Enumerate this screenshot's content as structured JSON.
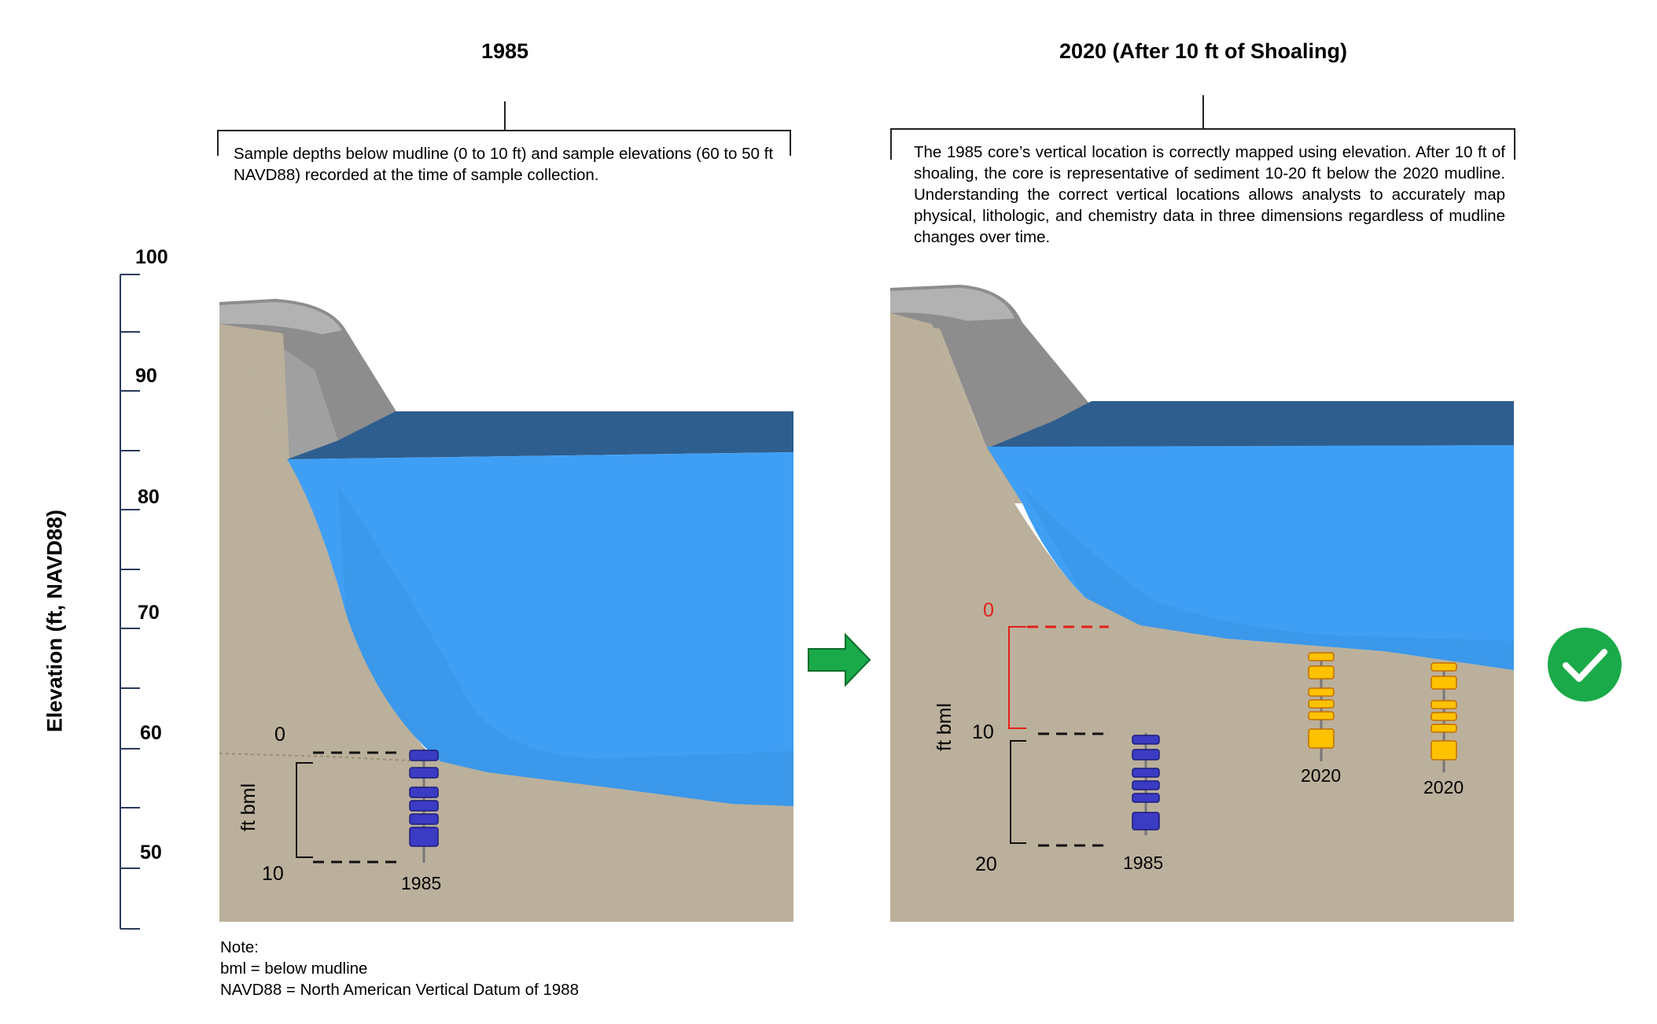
{
  "panels": {
    "left": {
      "title": "1985",
      "description": "Sample depths below mudline (0 to 10 ft) and sample elevations (60 to 50 ft NAVD88) recorded at the time of sample collection.",
      "bml_axis": {
        "top": "0",
        "bottom": "10",
        "label": "ft bml"
      },
      "core_label": "1985"
    },
    "right": {
      "title": "2020 (After 10 ft of Shoaling)",
      "description": "The 1985 core’s vertical location is correctly mapped using elevation. After 10 ft of shoaling, the core is representative of sediment 10-20 ft below the 2020 mudline. Understanding the correct vertical locations allows analysts to accurately map physical, lithologic, and chemistry data in three dimensions regardless of mudline changes over time.",
      "bml_axis": {
        "top": "0",
        "mid": "10",
        "bottom": "20",
        "label": "ft bml"
      },
      "core_labels": [
        "1985",
        "2020",
        "2020"
      ]
    }
  },
  "elevation_axis": {
    "title": "Elevation (ft, NAVD88)",
    "ticks": [
      "100",
      "90",
      "80",
      "70",
      "60",
      "50"
    ]
  },
  "note": {
    "heading": "Note:",
    "lines": [
      "bml = below mudline",
      "NAVD88 = North American Vertical Datum of 1988"
    ]
  },
  "colors": {
    "sediment": "#bbb09b",
    "water_front": "#3f9ff5",
    "water_top": "#2e5e8e",
    "rock": "#8f8f8f",
    "core_1985": "#3b3bc4",
    "core_2020": "#ffc200",
    "bml_red": "#e3201b",
    "arrow": "#1aaa49",
    "check": "#1aaa49"
  },
  "icons": {
    "arrow": "right-arrow-icon",
    "check": "check-circle-icon"
  }
}
